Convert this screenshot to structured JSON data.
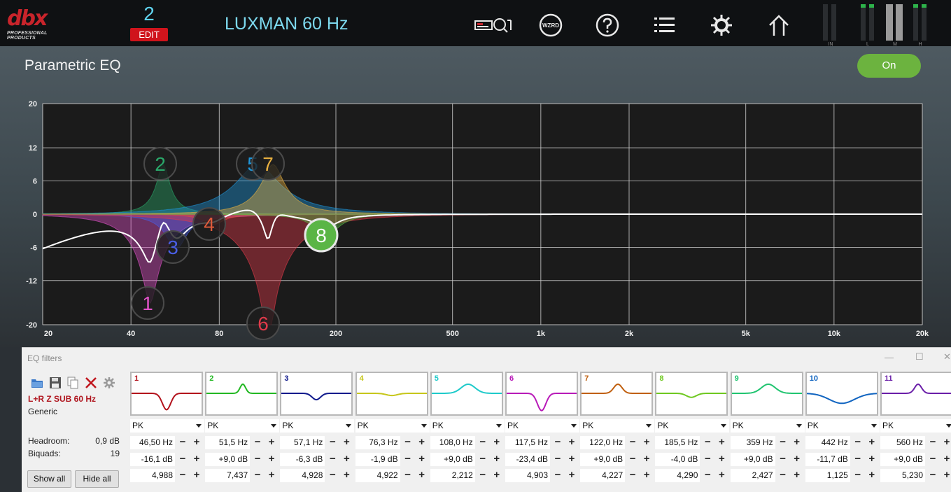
{
  "topbar": {
    "logo_text": "dbx",
    "logo_sub": "PROFESSIONAL PRODUCTS",
    "preset_number": "2",
    "edit_label": "EDIT",
    "preset_name": "LUXMAN 60 Hz",
    "icons": [
      "rta-icon",
      "wizard-icon",
      "help-icon",
      "list-icon",
      "settings-icon",
      "home-icon"
    ],
    "wizard_label": "WZRD",
    "meters": [
      {
        "label": "IN",
        "lit": [
          false,
          false
        ]
      },
      {
        "label": "L",
        "lit": [
          true,
          true
        ]
      },
      {
        "label": "M",
        "lit": [
          false,
          false
        ]
      },
      {
        "label": "H",
        "lit": [
          true,
          true
        ]
      }
    ]
  },
  "eq": {
    "title": "Parametric EQ",
    "on_label": "On"
  },
  "chart_data": {
    "type": "area",
    "xscale": "log",
    "xlim": [
      20,
      20000
    ],
    "ylim": [
      -20,
      20
    ],
    "yticks": [
      20,
      12,
      6,
      0,
      -6,
      -12,
      -20
    ],
    "xticks": [
      20,
      40,
      80,
      200,
      500,
      1000,
      2000,
      5000,
      10000,
      20000
    ],
    "xtick_labels": [
      "20",
      "40",
      "80",
      "200",
      "500",
      "1k",
      "2k",
      "5k",
      "10k",
      "20k"
    ],
    "grid": true,
    "nodes": [
      {
        "label": "1",
        "freq": 46.5,
        "gain": -16.1,
        "q": 4.988,
        "color": "#e052c8"
      },
      {
        "label": "2",
        "freq": 51.5,
        "gain": 9.0,
        "q": 7.437,
        "color": "#2aa86a"
      },
      {
        "label": "3",
        "freq": 57.1,
        "gain": -6.3,
        "q": 4.928,
        "color": "#4a5fe6"
      },
      {
        "label": "4",
        "freq": 76.3,
        "gain": -1.9,
        "q": 4.922,
        "color": "#e05a3a"
      },
      {
        "label": "5",
        "freq": 108.0,
        "gain": 9.0,
        "q": 2.212,
        "color": "#1f95d8"
      },
      {
        "label": "6",
        "freq": 117.5,
        "gain": -23.4,
        "q": 4.903,
        "color": "#e03a4a"
      },
      {
        "label": "7",
        "freq": 122.0,
        "gain": 9.0,
        "q": 4.227,
        "color": "#e8b040"
      },
      {
        "label": "8",
        "freq": 185.5,
        "gain": -4.0,
        "q": 4.29,
        "color": "#5ab545"
      }
    ]
  },
  "filters_window": {
    "title": "EQ filters",
    "output_name": "L+R Z SUB 60 Hz",
    "output_type": "Generic",
    "headroom_label": "Headroom:",
    "headroom_value": "0,9 dB",
    "biquads_label": "Biquads:",
    "biquads_value": "19",
    "show_all": "Show all",
    "hide_all": "Hide all",
    "bands": [
      {
        "num": "1",
        "color": "#b3121c",
        "type": "PK",
        "freq": "46,50 Hz",
        "gain": "-16,1 dB",
        "q": "4,988",
        "shape": "dip",
        "depth": 0.9,
        "pos": 0.5,
        "width": 0.06
      },
      {
        "num": "2",
        "color": "#22b822",
        "type": "PK",
        "freq": "51,5 Hz",
        "gain": "+9,0 dB",
        "q": "7,437",
        "shape": "peak",
        "depth": 0.5,
        "pos": 0.52,
        "width": 0.04
      },
      {
        "num": "3",
        "color": "#101a8c",
        "type": "PK",
        "freq": "57,1 Hz",
        "gain": "-6,3 dB",
        "q": "4,928",
        "shape": "dip",
        "depth": 0.35,
        "pos": 0.5,
        "width": 0.06
      },
      {
        "num": "4",
        "color": "#c6c61a",
        "type": "PK",
        "freq": "76,3 Hz",
        "gain": "-1,9 dB",
        "q": "4,922",
        "shape": "dip",
        "depth": 0.12,
        "pos": 0.5,
        "width": 0.08
      },
      {
        "num": "5",
        "color": "#1ecaca",
        "type": "PK",
        "freq": "108,0 Hz",
        "gain": "+9,0 dB",
        "q": "2,212",
        "shape": "peak",
        "depth": 0.5,
        "pos": 0.52,
        "width": 0.1
      },
      {
        "num": "6",
        "color": "#b81ab8",
        "type": "PK",
        "freq": "117,5 Hz",
        "gain": "-23,4 dB",
        "q": "4,903",
        "shape": "dip",
        "depth": 0.95,
        "pos": 0.5,
        "width": 0.06
      },
      {
        "num": "7",
        "color": "#c06010",
        "type": "PK",
        "freq": "122,0 Hz",
        "gain": "+9,0 dB",
        "q": "4,227",
        "shape": "peak",
        "depth": 0.5,
        "pos": 0.52,
        "width": 0.06
      },
      {
        "num": "8",
        "color": "#6ec820",
        "type": "PK",
        "freq": "185,5 Hz",
        "gain": "-4,0 dB",
        "q": "4,290",
        "shape": "dip",
        "depth": 0.22,
        "pos": 0.5,
        "width": 0.07
      },
      {
        "num": "9",
        "color": "#20c470",
        "type": "PK",
        "freq": "359 Hz",
        "gain": "+9,0 dB",
        "q": "2,427",
        "shape": "peak",
        "depth": 0.5,
        "pos": 0.52,
        "width": 0.1
      },
      {
        "num": "10",
        "color": "#1064c0",
        "type": "PK",
        "freq": "442 Hz",
        "gain": "-11,7 dB",
        "q": "1,125",
        "shape": "dip",
        "depth": 0.55,
        "pos": 0.5,
        "width": 0.18
      },
      {
        "num": "11",
        "color": "#6a1ea8",
        "type": "PK",
        "freq": "560 Hz",
        "gain": "+9,0 dB",
        "q": "5,230",
        "shape": "peak",
        "depth": 0.5,
        "pos": 0.52,
        "width": 0.05
      }
    ]
  }
}
